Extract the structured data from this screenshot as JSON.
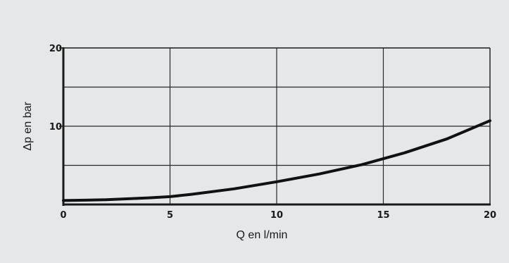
{
  "chart_data": {
    "type": "line",
    "title": "",
    "xlabel": "Q en l/min",
    "ylabel": "Δp en bar",
    "xlim": [
      0,
      20
    ],
    "ylim": [
      0,
      20
    ],
    "x_ticks": [
      "0",
      "5",
      "10",
      "15",
      "20"
    ],
    "y_ticks": [
      "10",
      "20"
    ],
    "x_grid": [
      5,
      10,
      15
    ],
    "y_grid": [
      5,
      10,
      15
    ],
    "grid": true,
    "series": [
      {
        "x": [
          0,
          2,
          4,
          5,
          6,
          8,
          10,
          12,
          14,
          16,
          18,
          20
        ],
        "y": [
          0.5,
          0.6,
          0.85,
          1.0,
          1.3,
          2.0,
          2.9,
          3.9,
          5.1,
          6.6,
          8.4,
          10.7
        ]
      }
    ],
    "line_color": "#111111"
  }
}
